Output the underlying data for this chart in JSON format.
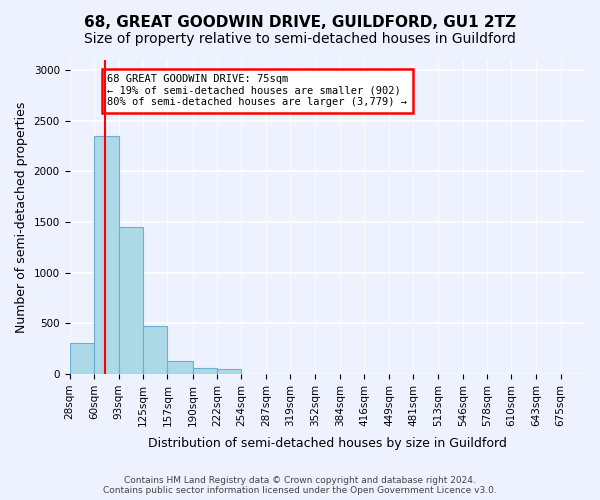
{
  "title": "68, GREAT GOODWIN DRIVE, GUILDFORD, GU1 2TZ",
  "subtitle": "Size of property relative to semi-detached houses in Guildford",
  "xlabel": "Distribution of semi-detached houses by size in Guildford",
  "ylabel": "Number of semi-detached properties",
  "footer_line1": "Contains HM Land Registry data © Crown copyright and database right 2024.",
  "footer_line2": "Contains public sector information licensed under the Open Government Licence v3.0.",
  "bin_labels": [
    "28sqm",
    "60sqm",
    "93sqm",
    "125sqm",
    "157sqm",
    "190sqm",
    "222sqm",
    "254sqm",
    "287sqm",
    "319sqm",
    "352sqm",
    "384sqm",
    "416sqm",
    "449sqm",
    "481sqm",
    "513sqm",
    "546sqm",
    "578sqm",
    "610sqm",
    "643sqm",
    "675sqm"
  ],
  "bin_edges": [
    28,
    60,
    93,
    125,
    157,
    190,
    222,
    254,
    287,
    319,
    352,
    384,
    416,
    449,
    481,
    513,
    546,
    578,
    610,
    643,
    675,
    707
  ],
  "bar_values": [
    305,
    2350,
    1450,
    475,
    130,
    60,
    45,
    0,
    0,
    0,
    0,
    0,
    0,
    0,
    0,
    0,
    0,
    0,
    0,
    0,
    0
  ],
  "bar_color": "#add8e6",
  "bar_edge_color": "#6baed6",
  "red_line_x": 75,
  "annotation_box_text": "68 GREAT GOODWIN DRIVE: 75sqm\n← 19% of semi-detached houses are smaller (902)\n80% of semi-detached houses are larger (3,779) →",
  "annotation_box_color": "white",
  "annotation_box_edge_color": "red",
  "ylim": [
    0,
    3100
  ],
  "yticks": [
    0,
    500,
    1000,
    1500,
    2000,
    2500,
    3000
  ],
  "background_color": "#eef2ff",
  "grid_color": "white",
  "title_fontsize": 11,
  "subtitle_fontsize": 10,
  "axis_label_fontsize": 9,
  "tick_fontsize": 7.5,
  "footer_fontsize": 6.5
}
